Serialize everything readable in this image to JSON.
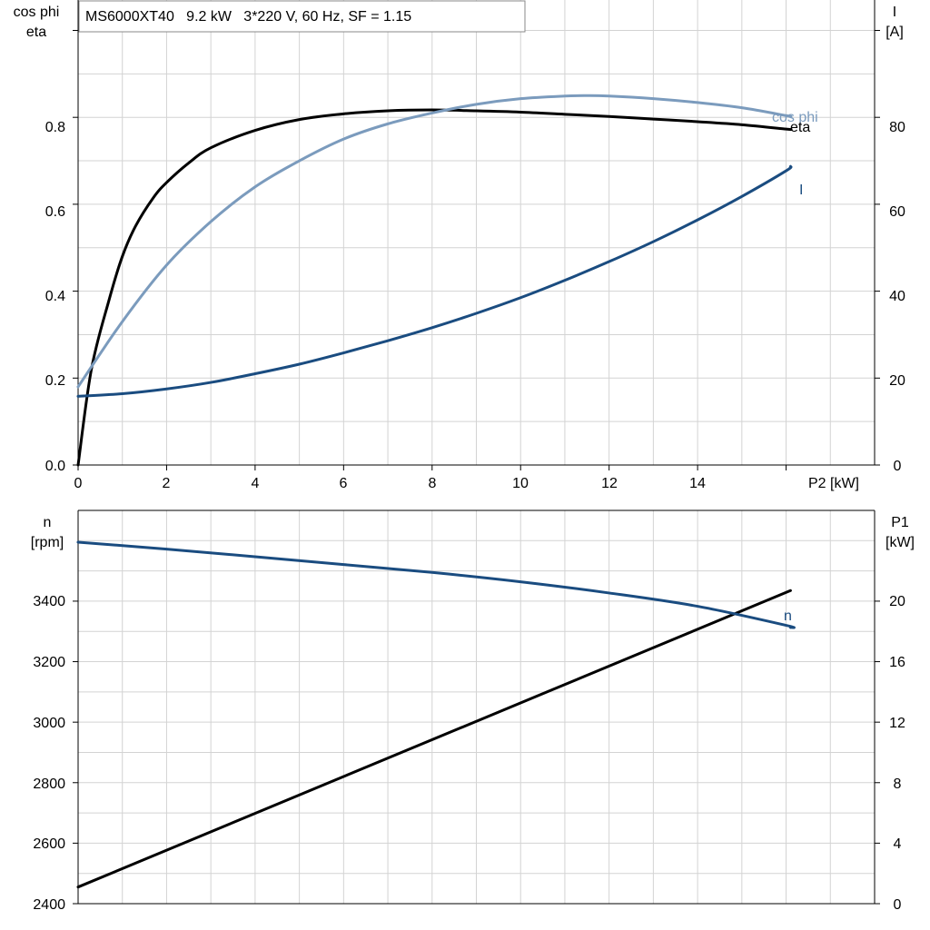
{
  "colors": {
    "eta": "#000000",
    "cos_phi": "#7b9bbd",
    "current": "#1a4c80",
    "speed": "#1a4c80",
    "p1": "#000000",
    "grid": "#d3d3d3"
  },
  "chart_data": [
    {
      "type": "line",
      "title": "MS6000XT40   9.2 kW   3*220 V, 60 Hz, SF = 1.15",
      "xlabel": "P2 [kW]",
      "xlim": [
        0,
        18
      ],
      "xticks": [
        "0",
        "2",
        "4",
        "6",
        "8",
        "10",
        "12",
        "14"
      ],
      "y_left_label": [
        "cos phi",
        "eta"
      ],
      "y_left_lim": [
        0,
        1.07
      ],
      "y_left_ticks": [
        "0.0",
        "0.2",
        "0.4",
        "0.6",
        "0.8"
      ],
      "y_right_label": [
        "I",
        "[A]"
      ],
      "y_right_lim": [
        0,
        107
      ],
      "y_right_ticks": [
        "0",
        "20",
        "40",
        "60",
        "80"
      ],
      "grid": true,
      "series": [
        {
          "name": "eta",
          "axis": "left",
          "x": [
            0,
            0.3,
            0.7,
            1.0,
            1.3,
            1.7,
            2.0,
            2.5,
            3.0,
            4.0,
            5.0,
            6.0,
            7.0,
            8.0,
            9.0,
            10.0,
            11.0,
            12.0,
            13.0,
            14.0,
            15.0,
            16.0,
            16.1
          ],
          "y": [
            0.0,
            0.22,
            0.38,
            0.48,
            0.55,
            0.615,
            0.65,
            0.695,
            0.73,
            0.77,
            0.795,
            0.808,
            0.815,
            0.817,
            0.815,
            0.812,
            0.807,
            0.802,
            0.796,
            0.79,
            0.783,
            0.773,
            0.772
          ]
        },
        {
          "name": "cos phi",
          "axis": "left",
          "x": [
            0,
            1,
            2,
            3,
            4,
            5,
            6,
            7,
            8,
            9,
            10,
            11,
            11.5,
            12,
            13,
            14,
            15,
            16,
            16.1
          ],
          "y": [
            0.18,
            0.33,
            0.46,
            0.56,
            0.64,
            0.7,
            0.75,
            0.785,
            0.81,
            0.83,
            0.843,
            0.849,
            0.85,
            0.849,
            0.843,
            0.834,
            0.822,
            0.804,
            0.802
          ]
        },
        {
          "name": "I",
          "axis": "right",
          "x": [
            0,
            1,
            2,
            3,
            4,
            5,
            6,
            7,
            8,
            9,
            10,
            11,
            12,
            13,
            14,
            15,
            16,
            16.1
          ],
          "y": [
            15.8,
            16.4,
            17.5,
            19.0,
            21.0,
            23.2,
            25.8,
            28.6,
            31.6,
            34.9,
            38.5,
            42.5,
            46.8,
            51.4,
            56.4,
            61.8,
            67.7,
            68.7
          ]
        }
      ]
    },
    {
      "type": "line",
      "xlim": [
        0,
        18
      ],
      "y_left_label": [
        "n",
        "[rpm]"
      ],
      "y_left_lim": [
        2400,
        3700
      ],
      "y_left_ticks": [
        "2400",
        "2600",
        "2800",
        "3000",
        "3200",
        "3400"
      ],
      "y_right_label": [
        "P1",
        "[kW]"
      ],
      "y_right_lim": [
        0,
        26
      ],
      "y_right_ticks": [
        "0",
        "4",
        "8",
        "12",
        "16",
        "20"
      ],
      "grid": true,
      "series": [
        {
          "name": "n",
          "axis": "left",
          "x": [
            0,
            2,
            4,
            6,
            8,
            10,
            12,
            14,
            16,
            16.1
          ],
          "y": [
            3595,
            3572,
            3547,
            3521,
            3495,
            3464,
            3427,
            3383,
            3320,
            3313
          ]
        },
        {
          "name": "P1",
          "axis": "right",
          "x": [
            0,
            16.1
          ],
          "y": [
            1.1,
            20.7
          ]
        }
      ]
    }
  ]
}
